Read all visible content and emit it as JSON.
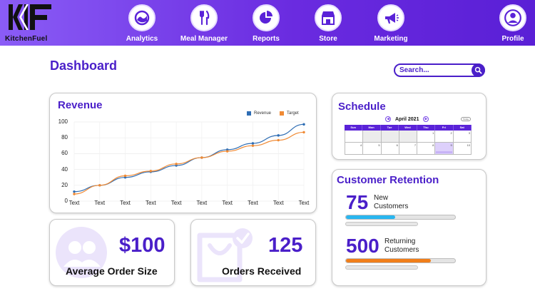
{
  "app": {
    "logo_text": "KitchenFuel"
  },
  "nav": {
    "items": [
      {
        "label": "Analytics",
        "icon": "analytics-icon"
      },
      {
        "label": "Meal Manager",
        "icon": "fork-knife-icon"
      },
      {
        "label": "Reports",
        "icon": "pie-chart-icon"
      },
      {
        "label": "Store",
        "icon": "storefront-icon"
      },
      {
        "label": "Marketing",
        "icon": "megaphone-icon"
      },
      {
        "label": "Profile",
        "icon": "user-icon"
      }
    ]
  },
  "page": {
    "title": "Dashboard"
  },
  "search": {
    "placeholder": "Search..."
  },
  "revenue": {
    "title": "Revenue",
    "legend": [
      "Revenue",
      "Target"
    ],
    "colors": {
      "revenue": "#2e6db4",
      "target": "#f08a34"
    }
  },
  "chart_data": {
    "type": "line",
    "categories": [
      "Text",
      "Text",
      "Text",
      "Text",
      "Text",
      "Text",
      "Text",
      "Text",
      "Text",
      "Text"
    ],
    "yticks": [
      0,
      20,
      40,
      60,
      80,
      100
    ],
    "ylim": [
      0,
      100
    ],
    "series": [
      {
        "name": "Revenue",
        "values": [
          12,
          20,
          30,
          37,
          45,
          55,
          65,
          73,
          83,
          97
        ]
      },
      {
        "name": "Target",
        "values": [
          9,
          20,
          32,
          38,
          47,
          55,
          63,
          70,
          77,
          87
        ]
      }
    ],
    "grid": true,
    "legend_position": "top-right"
  },
  "schedule": {
    "title": "Schedule",
    "month": "April 2021",
    "today_label": "Today",
    "days_of_week": [
      "Sun",
      "Mon",
      "Tue",
      "Wed",
      "Thu",
      "Fri",
      "Sat"
    ],
    "week1": [
      "",
      "",
      "",
      "",
      "1",
      "2",
      "3"
    ],
    "week2": [
      "4",
      "5",
      "6",
      "7",
      "8",
      "9",
      "10"
    ]
  },
  "stats": {
    "avg_order_value": "$100",
    "avg_order_label": "Average Order Size",
    "orders_value": "125",
    "orders_label": "Orders Received"
  },
  "retention": {
    "title": "Customer Retention",
    "new_value": "75",
    "new_label_1": "New",
    "new_label_2": "Customers",
    "new_fill": 0.45,
    "new_color": "#29b6f0",
    "returning_value": "500",
    "returning_label_1": "Returning",
    "returning_label_2": "Customers",
    "returning_fill": 0.78,
    "returning_color": "#f07e1a"
  }
}
